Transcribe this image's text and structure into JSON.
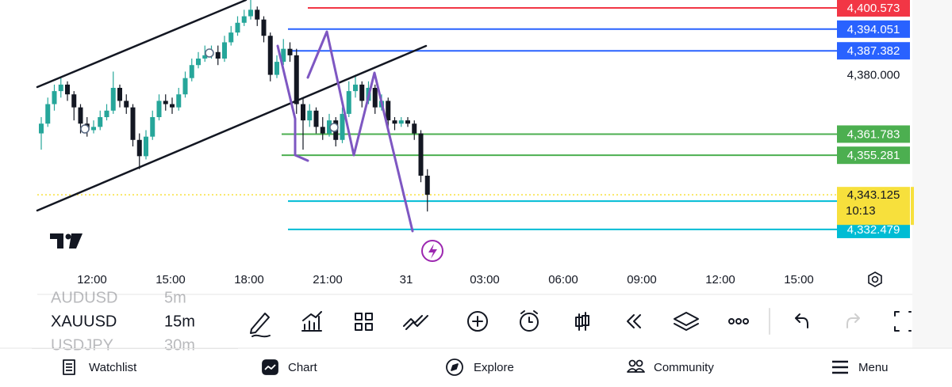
{
  "chart": {
    "type": "candlestick",
    "ylim": [
      4320.3,
      4403.0
    ],
    "yticks": [
      {
        "value": 4380,
        "label": "4,380.000"
      }
    ],
    "x_labels": [
      "12:00",
      "15:00",
      "18:00",
      "21:00",
      "31",
      "03:00",
      "06:00",
      "09:00",
      "12:00",
      "15:00"
    ],
    "up_color": "#26a69a",
    "down_color": "#131722",
    "candles": [
      [
        4362,
        4367,
        4357,
        4365
      ],
      [
        4365,
        4373,
        4364,
        4371
      ],
      [
        4371,
        4377,
        4369,
        4375
      ],
      [
        4375,
        4379,
        4373,
        4377
      ],
      [
        4377,
        4378,
        4372,
        4374
      ],
      [
        4374,
        4375,
        4366,
        4370
      ],
      [
        4370,
        4371,
        4362,
        4365
      ],
      [
        4365,
        4367,
        4361,
        4363
      ],
      [
        4363,
        4366,
        4362,
        4364
      ],
      [
        4364,
        4369,
        4363,
        4367
      ],
      [
        4367,
        4371,
        4366,
        4369
      ],
      [
        4369,
        4381,
        4368,
        4376
      ],
      [
        4376,
        4377,
        4370,
        4372
      ],
      [
        4372,
        4374,
        4368,
        4370
      ],
      [
        4370,
        4371,
        4358,
        4360
      ],
      [
        4360,
        4362,
        4351,
        4355
      ],
      [
        4355,
        4363,
        4354,
        4361
      ],
      [
        4361,
        4369,
        4360,
        4367
      ],
      [
        4367,
        4374,
        4366,
        4372
      ],
      [
        4372,
        4374,
        4369,
        4371
      ],
      [
        4371,
        4373,
        4368,
        4370
      ],
      [
        4370,
        4376,
        4369,
        4374
      ],
      [
        4374,
        4381,
        4373,
        4379
      ],
      [
        4379,
        4385,
        4378,
        4383
      ],
      [
        4383,
        4387,
        4382,
        4385
      ],
      [
        4385,
        4389,
        4384,
        4386
      ],
      [
        4386,
        4389,
        4385,
        4387
      ],
      [
        4387,
        4389,
        4383,
        4385
      ],
      [
        4385,
        4392,
        4384,
        4390
      ],
      [
        4390,
        4395,
        4389,
        4393
      ],
      [
        4393,
        4398,
        4392,
        4396
      ],
      [
        4396,
        4400,
        4395,
        4398
      ],
      [
        4398,
        4403,
        4397,
        4400
      ],
      [
        4400,
        4401,
        4395,
        4397
      ],
      [
        4397,
        4398,
        4390,
        4392
      ],
      [
        4392,
        4393,
        4378,
        4380
      ],
      [
        4380,
        4386,
        4379,
        4384
      ],
      [
        4384,
        4391,
        4383,
        4388
      ],
      [
        4388,
        4390,
        4384,
        4386
      ],
      [
        4386,
        4388,
        4368,
        4371
      ],
      [
        4371,
        4373,
        4357,
        4366
      ],
      [
        4366,
        4371,
        4364,
        4369
      ],
      [
        4369,
        4370,
        4362,
        4364
      ],
      [
        4364,
        4367,
        4360,
        4362
      ],
      [
        4362,
        4368,
        4361,
        4366
      ],
      [
        4366,
        4367,
        4358,
        4360
      ],
      [
        4360,
        4370,
        4359,
        4368
      ],
      [
        4368,
        4378,
        4367,
        4375
      ],
      [
        4375,
        4380,
        4373,
        4377
      ],
      [
        4377,
        4378,
        4370,
        4372
      ],
      [
        4372,
        4378,
        4371,
        4376
      ],
      [
        4376,
        4377,
        4368,
        4370
      ],
      [
        4370,
        4374,
        4369,
        4372
      ],
      [
        4372,
        4373,
        4364,
        4366
      ],
      [
        4366,
        4367,
        4363,
        4365
      ],
      [
        4365,
        4367,
        4364,
        4366
      ],
      [
        4366,
        4367,
        4364,
        4365
      ],
      [
        4365,
        4366,
        4360,
        4362
      ],
      [
        4362,
        4363,
        4347,
        4349
      ],
      [
        4349,
        4351,
        4338,
        4343.125
      ]
    ],
    "price_lines": [
      {
        "value": 4400.573,
        "label": "4,400.573",
        "color": "#f23645"
      },
      {
        "value": 4394.051,
        "label": "4,394.051",
        "color": "#2962ff"
      },
      {
        "value": 4387.382,
        "label": "4,387.382",
        "color": "#2962ff"
      },
      {
        "value": 4361.783,
        "label": "4,361.783",
        "color": "#4caf50"
      },
      {
        "value": 4355.281,
        "label": "4,355.281",
        "color": "#4caf50"
      },
      {
        "value": 4341.2,
        "color": "#00bcd4"
      },
      {
        "value": 4332.479,
        "label": "4,332.479",
        "color": "#00bcd4"
      }
    ],
    "last_price": {
      "value": 4343.125,
      "label": "4,343.125",
      "countdown": "10:13",
      "color": "#f7e03c"
    }
  },
  "symbols": [
    {
      "symbol": "AUDUSD",
      "interval": "5m"
    },
    {
      "symbol": "XAUUSD",
      "interval": "15m"
    },
    {
      "symbol": "USDJPY",
      "interval": "30m"
    }
  ],
  "nav": [
    "Watchlist",
    "Chart",
    "Explore",
    "Community",
    "Menu"
  ]
}
